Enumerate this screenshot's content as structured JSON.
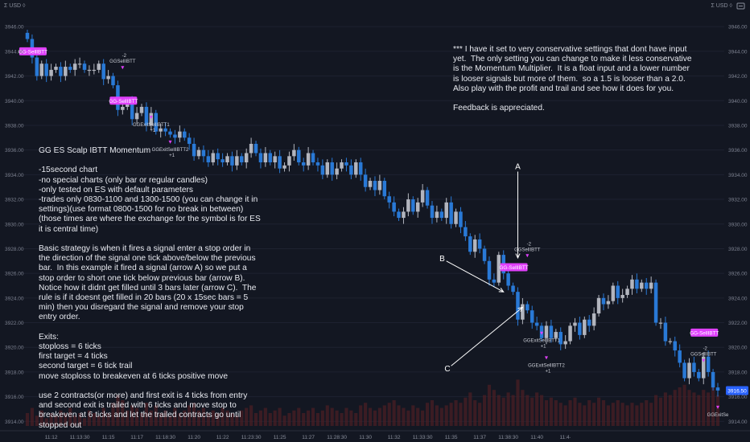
{
  "header": {
    "currency_left": "Σ USD ◊",
    "currency_right": "Σ USD ◊"
  },
  "notes": {
    "top": "*** I have it set to very conservative settings that dont have input yet.  The only setting you can change to make it less conservative is the Momentum Multiplier.  It is a float input and a lower number is looser signals but more of them.  so a 1.5 is looser than a 2.0.  Also play with the profit and trail and see how it does for you.\n\nFeedback is appreciated.",
    "left": "GG ES Scalp IBTT Momentum\n\n-15second chart\n-no special charts (only bar or regular candles)\n-only tested on ES with default parameters\n-trades only 0830-1100 and 1300-1500 (you can change it in settings)(use format 0800-1500 for no break in between) (those times are where the exchange for the symbol is for ES it is central time)\n\nBasic strategy is when it fires a signal enter a stop order in the direction of the signal one tick above/below the previous bar.  In this example it fired a signal (arrow A) so we put a stop order to short one tick below previous bar (arrow B).  Notice how it didnt get filled until 3 bars later (arrow C).  The rule is if it doesnt get filled in 20 bars (20 x 15sec bars = 5 min) then you disregard the signal and remove your stop entry order.\n\nExits:\nstoploss = 6 ticks\nfirst target = 4 ticks\nsecond target = 6 tick trail\nmove stoploss to breakeven at 6 ticks positive move\n\nuse 2 contracts(or more) and first exit is 4 ticks from entry and second exit is trailed with 6 ticks and move stop to breakeven at 6 ticks and let the trailed contracts go until stopped out"
  },
  "chart_data": {
    "type": "candlestick",
    "symbol": "ES",
    "interval": "15s",
    "y_ticks": [
      "3946.00",
      "3944.00",
      "3942.00",
      "3940.00",
      "3938.00",
      "3936.00",
      "3934.00",
      "3932.00",
      "3930.00",
      "3928.00",
      "3926.00",
      "3924.00",
      "3922.00",
      "3920.00",
      "3918.00",
      "3916.00",
      "3914.00"
    ],
    "ylim": [
      3913.5,
      3947.25
    ],
    "x_ticks": [
      "11:12",
      "11:13:30",
      "11:15",
      "11:17",
      "11:18:30",
      "11:20",
      "11:22",
      "11:23:30",
      "11:25",
      "11:27",
      "11:28:30",
      "11:30",
      "11:32",
      "11:33:30",
      "11:35",
      "11:37",
      "11:38:30",
      "11:40",
      "11:4·"
    ],
    "bars_per_tick": 6,
    "last_price": {
      "label": "3916.50",
      "value": 3916.5
    },
    "colors": {
      "up": "#b2b5be",
      "down": "#2979d6",
      "volume": "#4a1f24",
      "signal": "#e040fb",
      "price_tag": "#2962ff",
      "background": "#131722",
      "grid": "#1e2230"
    },
    "closes": [
      3945.0,
      3943.5,
      3942.0,
      3943.0,
      3942.0,
      3942.5,
      3942.75,
      3942.0,
      3942.75,
      3942.5,
      3943.0,
      3943.0,
      3942.5,
      3942.5,
      3942.5,
      3943.0,
      3941.75,
      3942.0,
      3941.25,
      3939.25,
      3939.5,
      3940.0,
      3938.5,
      3939.0,
      3939.5,
      3938.0,
      3939.0,
      3937.5,
      3937.75,
      3937.5,
      3937.25,
      3937.0,
      3937.5,
      3937.0,
      3936.5,
      3935.5,
      3936.0,
      3935.5,
      3935.0,
      3935.75,
      3935.25,
      3935.0,
      3935.5,
      3934.75,
      3935.5,
      3935.0,
      3935.75,
      3936.5,
      3935.75,
      3935.0,
      3935.75,
      3935.0,
      3935.5,
      3934.5,
      3934.75,
      3935.5,
      3936.0,
      3935.0,
      3934.75,
      3935.75,
      3935.0,
      3934.75,
      3934.0,
      3935.0,
      3934.0,
      3934.5,
      3935.0,
      3934.75,
      3934.0,
      3935.0,
      3934.0,
      3933.0,
      3933.5,
      3932.75,
      3933.5,
      3932.25,
      3931.75,
      3931.0,
      3930.5,
      3931.0,
      3932.0,
      3931.0,
      3931.75,
      3932.75,
      3931.5,
      3930.5,
      3931.0,
      3930.5,
      3931.75,
      3930.0,
      3931.0,
      3929.75,
      3929.0,
      3927.75,
      3928.75,
      3928.0,
      3927.0,
      3925.5,
      3925.25,
      3927.5,
      3926.0,
      3925.0,
      3924.5,
      3922.25,
      3923.5,
      3923.0,
      3922.0,
      3921.75,
      3920.75,
      3921.75,
      3920.75,
      3921.25,
      3920.25,
      3920.5,
      3921.75,
      3922.0,
      3921.0,
      3922.25,
      3921.75,
      3922.75,
      3924.0,
      3923.5,
      3923.75,
      3925.0,
      3924.0,
      3924.25,
      3924.75,
      3925.5,
      3924.75,
      3925.25,
      3924.75,
      3925.25,
      3922.0,
      3922.0,
      3920.5,
      3920.5,
      3919.75,
      3918.75,
      3917.5,
      3918.75,
      3918.0,
      3917.5,
      3919.25,
      3918.0,
      3916.75,
      3916.5
    ],
    "volume": [
      5,
      7,
      4,
      6,
      3,
      5,
      4,
      6,
      5,
      7,
      4,
      5,
      3,
      6,
      5,
      4,
      7,
      5,
      9,
      12,
      10,
      6,
      8,
      7,
      5,
      9,
      6,
      8,
      5,
      6,
      4,
      7,
      5,
      6,
      8,
      9,
      6,
      7,
      5,
      6,
      5,
      7,
      6,
      5,
      4,
      6,
      7,
      8,
      5,
      6,
      7,
      5,
      6,
      7,
      4,
      5,
      6,
      7,
      5,
      6,
      7,
      5,
      6,
      8,
      7,
      6,
      5,
      7,
      6,
      5,
      8,
      9,
      7,
      6,
      7,
      8,
      9,
      10,
      8,
      7,
      6,
      8,
      7,
      6,
      9,
      10,
      8,
      7,
      8,
      9,
      10,
      9,
      11,
      13,
      10,
      9,
      12,
      16,
      14,
      12,
      11,
      13,
      12,
      18,
      14,
      12,
      11,
      13,
      12,
      10,
      11,
      10,
      9,
      8,
      10,
      11,
      9,
      8,
      10,
      9,
      11,
      10,
      8,
      9,
      10,
      9,
      8,
      9,
      8,
      9,
      10,
      9,
      12,
      11,
      13,
      12,
      14,
      15,
      16,
      14,
      13,
      12,
      14,
      13,
      15,
      12
    ],
    "signals": [
      {
        "type": "sell",
        "label": "GG-SellIBTT",
        "bar": 1,
        "price": 3944.0
      },
      {
        "type": "sell",
        "label": "GG-SellIBTT",
        "bar": 20,
        "price": 3940.0
      },
      {
        "type": "sell",
        "label": "GG-SellIBTT",
        "bar": 102,
        "price": 3926.5
      },
      {
        "type": "sell",
        "label": "GG-SellIBTT",
        "bar": 142,
        "price": 3921.2
      }
    ],
    "trade_markers": [
      {
        "label": "GGSellIBTT",
        "qty": "-2",
        "bar": 20,
        "price": 3943.0
      },
      {
        "label": "GGExitSellIBTT1",
        "qty": "+1",
        "bar": 26,
        "price": 3938.25
      },
      {
        "label": "GGExitSellIBTT2",
        "qty": "+1",
        "bar": 30,
        "price": 3936.25
      },
      {
        "label": "GGSellIBTT",
        "qty": "-2",
        "bar": 105,
        "price": 3927.75
      },
      {
        "label": "GGExitSellIBTT1",
        "qty": "+1",
        "bar": 108,
        "price": 3920.75
      },
      {
        "label": "GGExitSellIBTT2",
        "qty": "+1",
        "bar": 109,
        "price": 3918.75
      },
      {
        "label": "GGSellIBTT",
        "qty": "-2",
        "bar": 142,
        "price": 3919.25
      },
      {
        "label": "GGExitSe",
        "qty": "",
        "bar": 145,
        "price": 3914.75
      }
    ],
    "annotations": [
      {
        "label": "A",
        "from": {
          "bar": 103,
          "price": 3934.25
        },
        "to": {
          "bar": 103,
          "price": 3927.25
        }
      },
      {
        "label": "B",
        "from": {
          "bar": 88,
          "price": 3927.0
        },
        "to": {
          "bar": 100,
          "price": 3924.5
        }
      },
      {
        "label": "C",
        "from": {
          "bar": 89,
          "price": 3918.5
        },
        "to": {
          "bar": 104,
          "price": 3923.25
        }
      }
    ]
  }
}
